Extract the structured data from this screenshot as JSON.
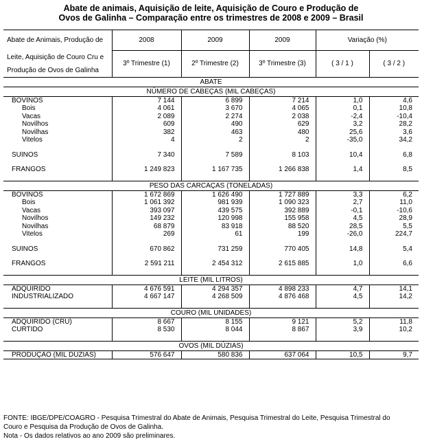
{
  "title_line1": "Abate de animais, Aquisição de leite, Aquisição de Couro e Produção de",
  "title_line2": "Ovos de Galinha – Comparação entre os trimestres de 2008 e 2009 – Brasil",
  "header": {
    "row_label_1": "Abate de Animais, Produção de",
    "row_label_2": "Leite, Aquisição de Couro Cru e",
    "row_label_3": "Produção de Ovos de Galinha",
    "year_1": "2008",
    "year_2": "2009",
    "year_3": "2009",
    "variation": "Variação (%)",
    "quarter_1": "3º Trimestre (1)",
    "quarter_2": "2º Trimestre (2)",
    "quarter_3": "3º Trimestre (3)",
    "ratio_1": "( 3 / 1 )",
    "ratio_2": "( 3 / 2 )"
  },
  "abate_title": "ABATE",
  "cabecas": {
    "title": "NÚMERO DE CABEÇAS (MIL CABEÇAS)",
    "rows": [
      {
        "label": "BOVINOS",
        "v1": "7 144",
        "v2": "6 899",
        "v3": "7 214",
        "r1": "1,0",
        "r2": "4,6"
      },
      {
        "label": "Bois",
        "v1": "4 061",
        "v2": "3 670",
        "v3": "4 065",
        "r1": "0,1",
        "r2": "10,8"
      },
      {
        "label": "Vacas",
        "v1": "2 089",
        "v2": "2 274",
        "v3": "2 038",
        "r1": "-2,4",
        "r2": "-10,4"
      },
      {
        "label": "Novilhos",
        "v1": "609",
        "v2": "490",
        "v3": "629",
        "r1": "3,2",
        "r2": "28,2"
      },
      {
        "label": "Novilhas",
        "v1": "382",
        "v2": "463",
        "v3": "480",
        "r1": "25,6",
        "r2": "3,6"
      },
      {
        "label": "Vitelos",
        "v1": "4",
        "v2": "2",
        "v3": "2",
        "r1": "-35,0",
        "r2": "34,2"
      },
      {
        "label": "SUÍNOS",
        "v1": "7 340",
        "v2": "7 589",
        "v3": "8 103",
        "r1": "10,4",
        "r2": "6,8"
      },
      {
        "label": "FRANGOS",
        "v1": "1 249 823",
        "v2": "1 167 735",
        "v3": "1 266 838",
        "r1": "1,4",
        "r2": "8,5"
      }
    ]
  },
  "carcacas": {
    "title": "PESO DAS CARCAÇAS (TONELADAS)",
    "rows": [
      {
        "label": "BOVINOS",
        "v1": "1 672 869",
        "v2": "1 626 490",
        "v3": "1 727 889",
        "r1": "3,3",
        "r2": "6,2"
      },
      {
        "label": "Bois",
        "v1": "1 061 392",
        "v2": "981 939",
        "v3": "1 090 323",
        "r1": "2,7",
        "r2": "11,0"
      },
      {
        "label": "Vacas",
        "v1": "393 097",
        "v2": "439 575",
        "v3": "392 889",
        "r1": "-0,1",
        "r2": "-10,6"
      },
      {
        "label": "Novilhos",
        "v1": "149 232",
        "v2": "120 998",
        "v3": "155 958",
        "r1": "4,5",
        "r2": "28,9"
      },
      {
        "label": "Novilhas",
        "v1": "68 879",
        "v2": "83 918",
        "v3": "88 520",
        "r1": "28,5",
        "r2": "5,5"
      },
      {
        "label": "Vitelos",
        "v1": "269",
        "v2": "61",
        "v3": "199",
        "r1": "-26,0",
        "r2": "224,7"
      },
      {
        "label": "SUÍNOS",
        "v1": "670 862",
        "v2": "731 259",
        "v3": "770 405",
        "r1": "14,8",
        "r2": "5,4"
      },
      {
        "label": "FRANGOS",
        "v1": "2 591 211",
        "v2": "2 454 312",
        "v3": "2 615 885",
        "r1": "1,0",
        "r2": "6,6"
      }
    ]
  },
  "leite": {
    "title": "LEITE (MIL LITROS)",
    "rows": [
      {
        "label": "ADQUIRIDO",
        "v1": "4 676 591",
        "v2": "4 294 357",
        "v3": "4 898 233",
        "r1": "4,7",
        "r2": "14,1"
      },
      {
        "label": "INDUSTRIALIZADO",
        "v1": "4 667 147",
        "v2": "4 268 509",
        "v3": "4 876 468",
        "r1": "4,5",
        "r2": "14,2"
      }
    ]
  },
  "couro": {
    "title": "COURO (MIL UNIDADES)",
    "rows": [
      {
        "label": "ADQUIRIDO (CRU)",
        "v1": "8 667",
        "v2": "8 155",
        "v3": "9 121",
        "r1": "5,2",
        "r2": "11,8"
      },
      {
        "label": "CURTIDO",
        "v1": "8 530",
        "v2": "8 044",
        "v3": "8 867",
        "r1": "3,9",
        "r2": "10,2"
      }
    ]
  },
  "ovos": {
    "title": "OVOS (MIL DÚZIAS)",
    "rows": [
      {
        "label": "PRODUÇÃO (MIL DÚZIAS)",
        "v1": "576 647",
        "v2": "580 836",
        "v3": "637 064",
        "r1": "10,5",
        "r2": "9,7"
      }
    ]
  },
  "footer_line1": "FONTE: IBGE/DPE/COAGRO - Pesquisa Trimestral do Abate de Animais, Pesquisa Trimestral do Leite, Pesquisa Trimestral do",
  "footer_line2": "Couro e Pesquisa da Produção de Ovos de Galinha.",
  "footer_line3": "Nota - Os dados relativos ao ano 2009 são preliminares."
}
